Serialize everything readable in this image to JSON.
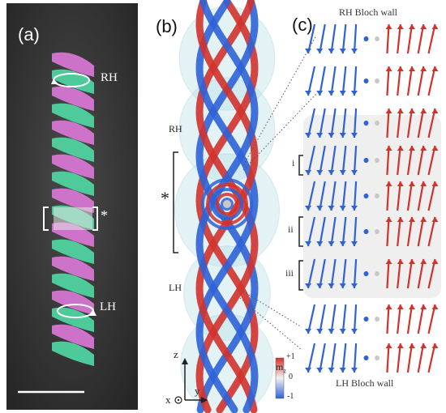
{
  "panels": {
    "a": {
      "label": "(a)",
      "rh_label": "RH",
      "lh_label": "LH",
      "star_label": "*"
    },
    "b": {
      "label": "(b)",
      "rh_label": "RH",
      "lh_label": "LH",
      "star_label": "*",
      "colorbar": {
        "title": "m",
        "title_sub": "z",
        "max_label": "+1",
        "mid_label": "0",
        "min_label": "-1"
      },
      "axes": {
        "z": "z",
        "y": "y",
        "x": "x"
      }
    },
    "c": {
      "label": "(c)",
      "top_title": "RH Bloch wall",
      "bottom_title": "LH Bloch wall",
      "markers": [
        "i",
        "ii",
        "iii"
      ]
    }
  },
  "colors": {
    "magenta": "#d978d6",
    "green": "#4fd6a3",
    "blue": "#2f62d6",
    "red": "#d2322c",
    "gray": "#c8c8c8",
    "halo": "#bfe3ea"
  }
}
